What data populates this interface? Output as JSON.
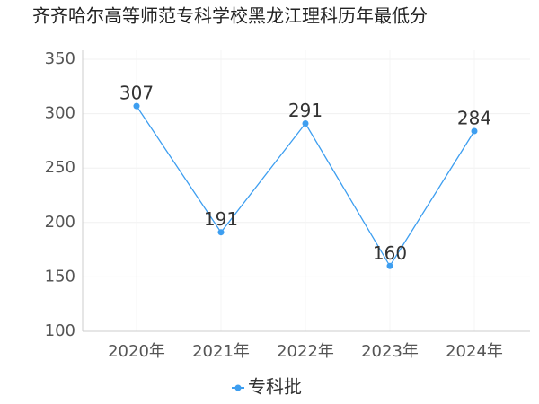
{
  "chart_data": {
    "type": "line",
    "title": "齐齐哈尔高等师范专科学校黑龙江理科历年最低分",
    "categories": [
      "2020年",
      "2021年",
      "2022年",
      "2023年",
      "2024年"
    ],
    "series": [
      {
        "name": "专科批",
        "color": "#3d9ef0",
        "values": [
          307,
          191,
          291,
          160,
          284
        ]
      }
    ],
    "ylim": [
      100,
      350
    ],
    "yticks": [
      100,
      150,
      200,
      250,
      300,
      350
    ],
    "grid": true,
    "legend": "bottom"
  }
}
